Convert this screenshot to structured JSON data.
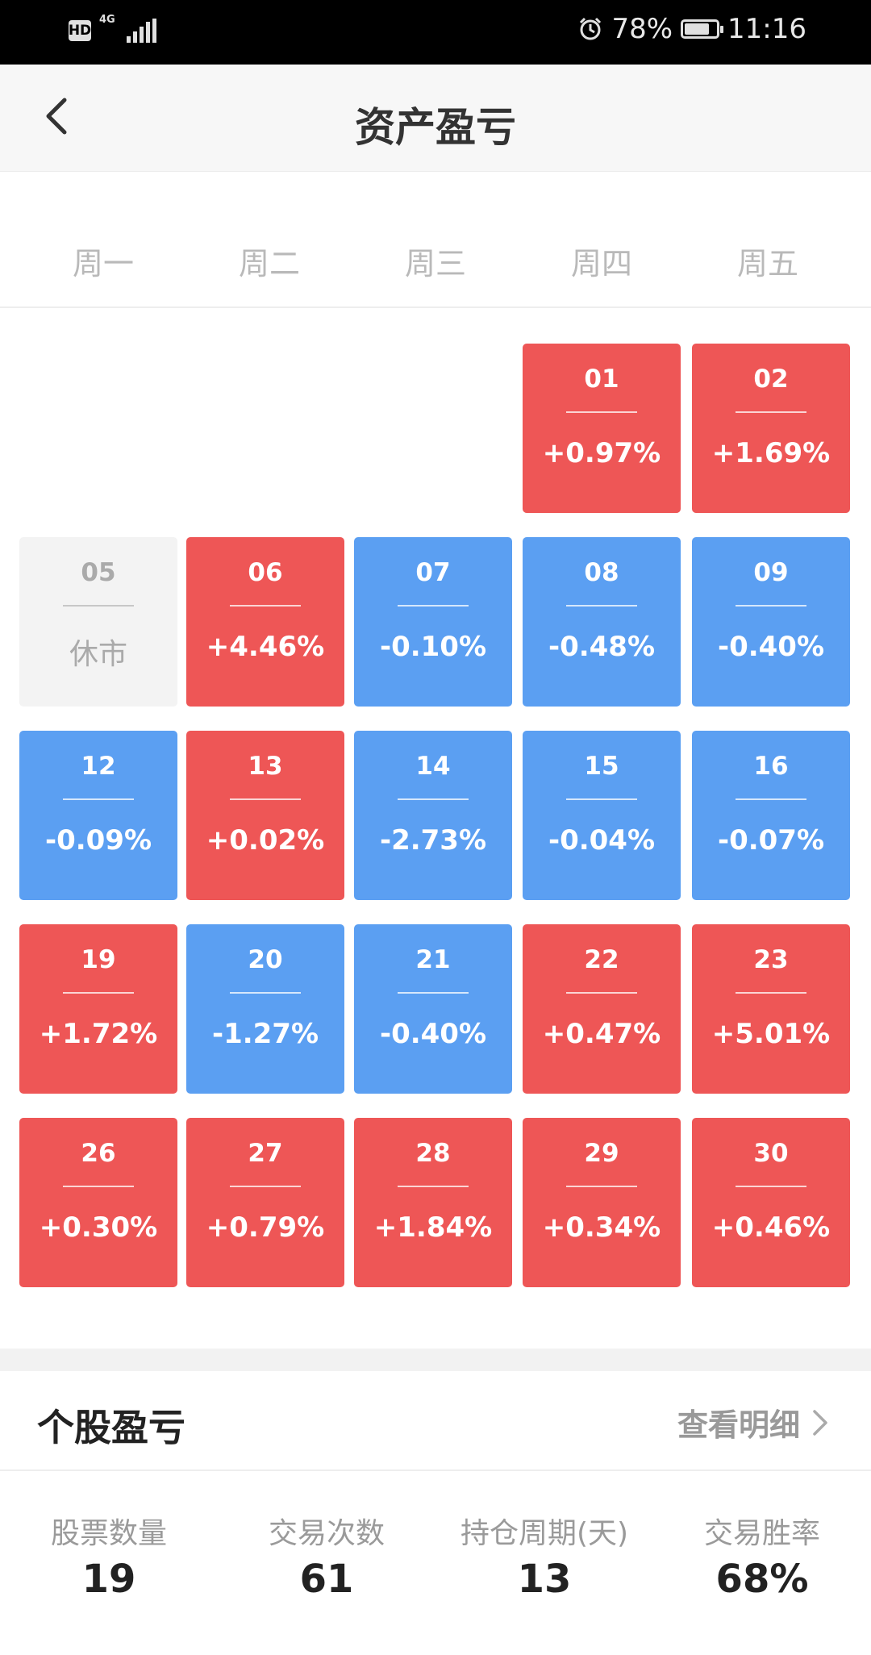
{
  "status_bar": {
    "hd": "HD",
    "network": "4G",
    "battery_percent": "78%",
    "time": "11:16",
    "battery_level": 0.78,
    "icons": [
      "alarm-icon",
      "battery-icon",
      "signal-icon"
    ]
  },
  "nav": {
    "title": "资产盈亏",
    "back_icon": "chevron-left-icon"
  },
  "weekdays": [
    "周一",
    "周二",
    "周三",
    "周四",
    "周五"
  ],
  "calendar": {
    "colors": {
      "gain": "#ee5656",
      "loss": "#5b9ff2",
      "closed": "#f3f3f3"
    },
    "weeks": [
      [
        null,
        null,
        null,
        {
          "date": "01",
          "value": "+0.97%",
          "status": "gain"
        },
        {
          "date": "02",
          "value": "+1.69%",
          "status": "gain"
        }
      ],
      [
        {
          "date": "05",
          "value": "休市",
          "status": "closed"
        },
        {
          "date": "06",
          "value": "+4.46%",
          "status": "gain"
        },
        {
          "date": "07",
          "value": "-0.10%",
          "status": "loss"
        },
        {
          "date": "08",
          "value": "-0.48%",
          "status": "loss"
        },
        {
          "date": "09",
          "value": "-0.40%",
          "status": "loss"
        }
      ],
      [
        {
          "date": "12",
          "value": "-0.09%",
          "status": "loss"
        },
        {
          "date": "13",
          "value": "+0.02%",
          "status": "gain"
        },
        {
          "date": "14",
          "value": "-2.73%",
          "status": "loss"
        },
        {
          "date": "15",
          "value": "-0.04%",
          "status": "loss"
        },
        {
          "date": "16",
          "value": "-0.07%",
          "status": "loss"
        }
      ],
      [
        {
          "date": "19",
          "value": "+1.72%",
          "status": "gain"
        },
        {
          "date": "20",
          "value": "-1.27%",
          "status": "loss"
        },
        {
          "date": "21",
          "value": "-0.40%",
          "status": "loss"
        },
        {
          "date": "22",
          "value": "+0.47%",
          "status": "gain"
        },
        {
          "date": "23",
          "value": "+5.01%",
          "status": "gain"
        }
      ],
      [
        {
          "date": "26",
          "value": "+0.30%",
          "status": "gain"
        },
        {
          "date": "27",
          "value": "+0.79%",
          "status": "gain"
        },
        {
          "date": "28",
          "value": "+1.84%",
          "status": "gain"
        },
        {
          "date": "29",
          "value": "+0.34%",
          "status": "gain"
        },
        {
          "date": "30",
          "value": "+0.46%",
          "status": "gain"
        }
      ]
    ]
  },
  "stock_section": {
    "title": "个股盈亏",
    "view_detail": "查看明细",
    "stats": [
      {
        "label": "股票数量",
        "value": "19"
      },
      {
        "label": "交易次数",
        "value": "61"
      },
      {
        "label": "持仓周期(天)",
        "value": "13"
      },
      {
        "label": "交易胜率",
        "value": "68%"
      }
    ]
  }
}
